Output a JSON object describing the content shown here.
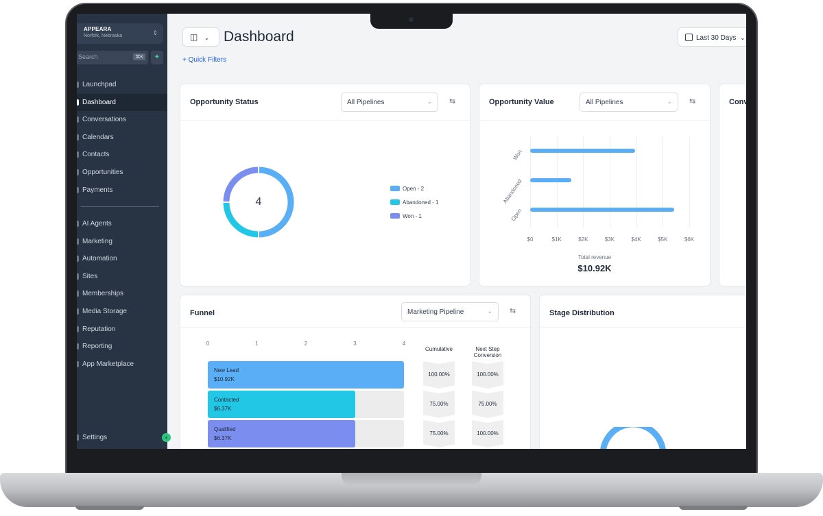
{
  "account": {
    "name": "APPEARA",
    "location": "Norfolk, Nebraska"
  },
  "search": {
    "placeholder": "Search",
    "shortcut": "⌘K"
  },
  "nav_primary": [
    {
      "label": "Launchpad",
      "active": false
    },
    {
      "label": "Dashboard",
      "active": true
    },
    {
      "label": "Conversations",
      "active": false
    },
    {
      "label": "Calendars",
      "active": false
    },
    {
      "label": "Contacts",
      "active": false
    },
    {
      "label": "Opportunities",
      "active": false
    },
    {
      "label": "Payments",
      "active": false
    }
  ],
  "nav_secondary": [
    {
      "label": "AI Agents"
    },
    {
      "label": "Marketing"
    },
    {
      "label": "Automation"
    },
    {
      "label": "Sites"
    },
    {
      "label": "Memberships"
    },
    {
      "label": "Media Storage"
    },
    {
      "label": "Reputation"
    },
    {
      "label": "Reporting"
    },
    {
      "label": "App Marketplace"
    }
  ],
  "settings_label": "Settings",
  "header": {
    "title": "Dashboard",
    "quick_filters": "+ Quick Filters",
    "date_range": "Last 30 Days"
  },
  "opportunity_status": {
    "title": "Opportunity Status",
    "pipeline": "All Pipelines",
    "total": "4",
    "legend": [
      "Open - 2",
      "Abandoned - 1",
      "Won - 1"
    ]
  },
  "opportunity_value": {
    "title": "Opportunity Value",
    "pipeline": "All Pipelines",
    "total_label": "Total revenue",
    "total_value": "$10.92K"
  },
  "conversion_card": {
    "title": "Conv"
  },
  "funnel": {
    "title": "Funnel",
    "pipeline": "Marketing Pipeline",
    "cumulative_header": "Cumulative",
    "next_step_header_1": "Next Step",
    "next_step_header_2": "Conversion"
  },
  "stage_distribution": {
    "title": "Stage Distribution"
  },
  "colors": {
    "open": "#5aaef5",
    "abandoned": "#22c7e6",
    "won": "#7b8ef0",
    "sidebar": "#283444",
    "accent": "#2563eb"
  },
  "chart_data": [
    {
      "type": "pie",
      "labels": [
        "Open",
        "Abandoned",
        "Won"
      ],
      "values": [
        2,
        1,
        1
      ],
      "title": "Opportunity Status"
    },
    {
      "type": "bar",
      "orientation": "horizontal",
      "categories": [
        "Won",
        "Abandoned",
        "Open"
      ],
      "values": [
        3950,
        1550,
        5420
      ],
      "xlim": [
        0,
        6000
      ],
      "xticks": [
        "$0",
        "$1K",
        "$2K",
        "$3K",
        "$4K",
        "$5K",
        "$6K"
      ],
      "title": "Opportunity Value",
      "grid": true
    },
    {
      "type": "bar",
      "orientation": "horizontal",
      "title": "Funnel",
      "xlim": [
        0,
        4
      ],
      "xticks": [
        "0",
        "1",
        "2",
        "3",
        "4"
      ],
      "categories": [
        "New Lead",
        "Contacted",
        "Qualified"
      ],
      "values": [
        4,
        3,
        3
      ],
      "amounts": [
        "$10.92K",
        "$6.37K",
        "$6.37K"
      ],
      "cumulative": [
        "100.00%",
        "75.00%",
        "75.00%"
      ],
      "next_step_conversion": [
        "100.00%",
        "75.00%",
        "100.00%"
      ]
    }
  ]
}
